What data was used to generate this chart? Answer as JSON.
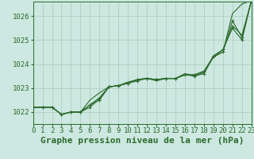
{
  "background_color": "#cce8e0",
  "grid_color": "#aaccbb",
  "line_color": "#2d6a2d",
  "xlim": [
    0,
    23
  ],
  "ylim": [
    1021.5,
    1026.6
  ],
  "xticks": [
    0,
    1,
    2,
    3,
    4,
    5,
    6,
    7,
    8,
    9,
    10,
    11,
    12,
    13,
    14,
    15,
    16,
    17,
    18,
    19,
    20,
    21,
    22,
    23
  ],
  "yticks": [
    1022,
    1023,
    1024,
    1025,
    1026
  ],
  "xlabel": "Graphe pression niveau de la mer (hPa)",
  "series": [
    [
      1022.2,
      1022.2,
      1022.2,
      1021.9,
      1022.0,
      1022.0,
      1022.5,
      1022.8,
      1023.05,
      1023.1,
      1023.2,
      1023.35,
      1023.4,
      1023.35,
      1023.4,
      1023.4,
      1023.55,
      1023.55,
      1023.7,
      1024.3,
      1024.5,
      1026.1,
      1026.5,
      1026.65
    ],
    [
      1022.2,
      1022.2,
      1022.2,
      1021.9,
      1022.0,
      1022.0,
      1022.2,
      1022.55,
      1023.05,
      1023.1,
      1023.2,
      1023.3,
      1023.4,
      1023.35,
      1023.4,
      1023.4,
      1023.55,
      1023.55,
      1023.7,
      1024.3,
      1024.6,
      1025.5,
      1025.0,
      1026.65
    ],
    [
      1022.2,
      1022.2,
      1022.2,
      1021.9,
      1022.0,
      1022.0,
      1022.3,
      1022.6,
      1023.05,
      1023.1,
      1023.25,
      1023.35,
      1023.4,
      1023.3,
      1023.4,
      1023.4,
      1023.6,
      1023.5,
      1023.65,
      1024.35,
      1024.6,
      1025.6,
      1025.2,
      1026.65
    ],
    [
      1022.2,
      1022.2,
      1022.2,
      1021.9,
      1022.0,
      1022.0,
      1022.3,
      1022.5,
      1023.05,
      1023.1,
      1023.2,
      1023.35,
      1023.4,
      1023.35,
      1023.4,
      1023.4,
      1023.55,
      1023.5,
      1023.6,
      1024.3,
      1024.5,
      1025.8,
      1025.1,
      1026.65
    ]
  ],
  "has_markers": [
    false,
    true,
    false,
    true
  ],
  "tick_fontsize": 6.5,
  "xlabel_fontsize": 8,
  "xlabel_fontweight": "bold"
}
